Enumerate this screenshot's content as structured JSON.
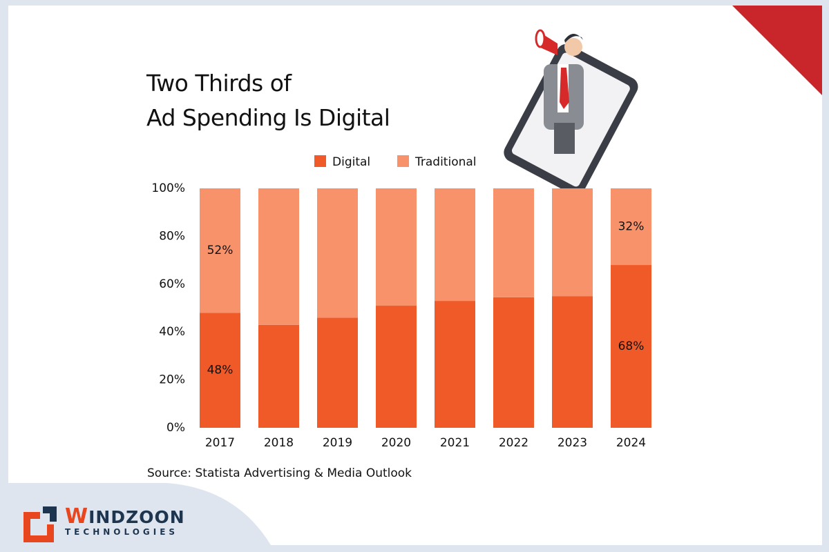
{
  "chart_data": {
    "type": "bar",
    "stacked": true,
    "title_lines": [
      "Two Thirds of",
      "Ad Spending Is Digital"
    ],
    "categories": [
      "2017",
      "2018",
      "2019",
      "2020",
      "2021",
      "2022",
      "2023",
      "2024"
    ],
    "series": [
      {
        "name": "Digital",
        "color": "#ef5a28",
        "values": [
          48,
          43,
          46,
          51,
          53,
          54.5,
          55,
          68
        ],
        "value_labels": [
          "48%",
          null,
          null,
          null,
          null,
          null,
          null,
          "68%"
        ]
      },
      {
        "name": "Traditional",
        "color": "#f8926b",
        "values": [
          52,
          57,
          54,
          49,
          47,
          45.5,
          45,
          32
        ],
        "value_labels": [
          "52%",
          null,
          null,
          null,
          null,
          null,
          null,
          "32%"
        ]
      }
    ],
    "ylim": [
      0,
      100
    ],
    "yticks": [
      {
        "value": 0,
        "label": "0%"
      },
      {
        "value": 20,
        "label": "20%"
      },
      {
        "value": 40,
        "label": "40%"
      },
      {
        "value": 60,
        "label": "60%"
      },
      {
        "value": 80,
        "label": "80%"
      },
      {
        "value": 100,
        "label": "100%"
      }
    ],
    "legend": "top",
    "source": "Source: Statista Advertising & Media Outlook"
  },
  "brand": {
    "name": "WINDZOON",
    "tagline": "TECHNOLOGIES"
  }
}
